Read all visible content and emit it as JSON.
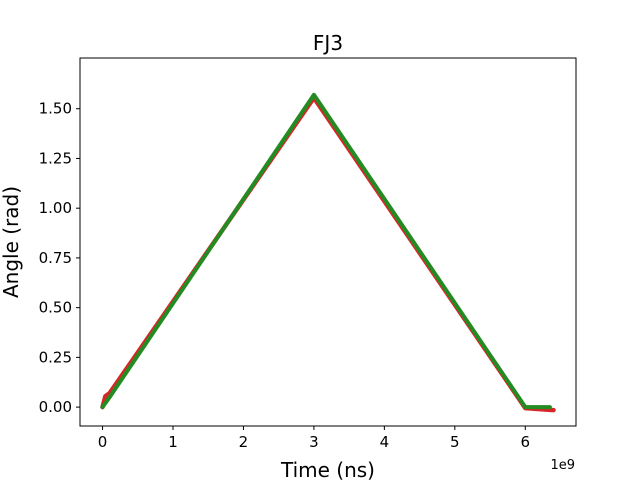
{
  "chart_data": {
    "type": "line",
    "title": "FJ3",
    "xlabel": "Time (ns)",
    "ylabel": "Angle (rad)",
    "x_offset_label": "1e9",
    "xlim": [
      -0.32,
      6.72
    ],
    "ylim": [
      -0.095,
      1.755
    ],
    "xticks": [
      0,
      1,
      2,
      3,
      4,
      5,
      6
    ],
    "xtick_labels": [
      "0",
      "1",
      "2",
      "3",
      "4",
      "5",
      "6"
    ],
    "yticks": [
      0.0,
      0.25,
      0.5,
      0.75,
      1.0,
      1.25,
      1.5
    ],
    "ytick_labels": [
      "0.00",
      "0.25",
      "0.50",
      "0.75",
      "1.00",
      "1.25",
      "1.50"
    ],
    "grid": false,
    "series": [
      {
        "color": "#d62728",
        "x": [
          0,
          0.04,
          0.1,
          3.0,
          6.0,
          6.4
        ],
        "y": [
          0.0,
          0.055,
          0.07,
          1.555,
          -0.005,
          -0.015
        ]
      },
      {
        "color": "#228B22",
        "x": [
          0,
          0.1,
          3.0,
          6.0,
          6.35
        ],
        "y": [
          0.0,
          0.05,
          1.57,
          0.0,
          0.0
        ]
      }
    ]
  }
}
